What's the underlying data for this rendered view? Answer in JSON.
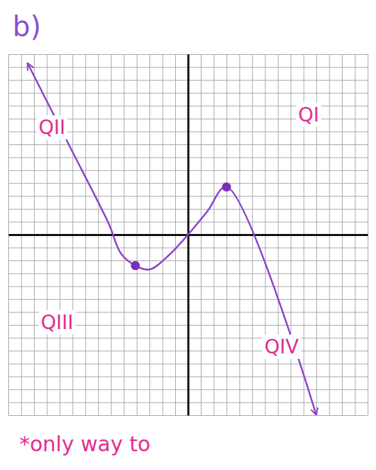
{
  "chart_data": {
    "type": "line",
    "title": "b)",
    "xlim": [
      -14,
      14
    ],
    "ylim": [
      -14,
      14
    ],
    "xticks": [
      -14,
      -13,
      -12,
      -11,
      -10,
      -9,
      -8,
      -7,
      -6,
      -5,
      -4,
      -3,
      -2,
      -1,
      0,
      1,
      2,
      3,
      4,
      5,
      6,
      7,
      8,
      9,
      10,
      11,
      12,
      13,
      14
    ],
    "yticks": [
      -14,
      -13,
      -12,
      -11,
      -10,
      -9,
      -8,
      -7,
      -6,
      -5,
      -4,
      -3,
      -2,
      -1,
      0,
      1,
      2,
      3,
      4,
      5,
      6,
      7,
      8,
      9,
      10,
      11,
      12,
      13,
      14
    ],
    "grid": true,
    "tick_labels": false,
    "series": [
      {
        "type": "line",
        "color": "#8a45c8",
        "x": [
          -12.5,
          -9.4,
          -6.2,
          -5.2,
          -4.1,
          -3,
          -1.5,
          0,
          1.5,
          3,
          10
        ],
        "values": [
          13.3,
          7.2,
          0.9,
          -1.5,
          -2.4,
          -2.7,
          -1.6,
          0,
          1.8,
          3.7,
          -14
        ]
      },
      {
        "type": "scatter",
        "marker": "circle",
        "color": "#7a2fb8",
        "x": [
          -4.1,
          3
        ],
        "values": [
          -2.4,
          3.7
        ]
      }
    ],
    "annotations": [
      "QII",
      "QI",
      "QIII",
      "QIV",
      "*only way to"
    ]
  }
}
